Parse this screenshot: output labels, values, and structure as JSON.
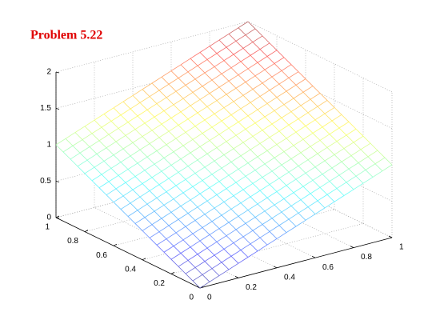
{
  "chart_data": {
    "type": "mesh3d",
    "title": "Problem 5.22",
    "x": [
      0,
      0.05,
      0.1,
      0.15,
      0.2,
      0.25,
      0.3,
      0.35,
      0.4,
      0.45,
      0.5,
      0.55,
      0.6,
      0.65,
      0.7,
      0.75,
      0.8,
      0.85,
      0.9,
      0.95,
      1
    ],
    "y": [
      0,
      0.05,
      0.1,
      0.15,
      0.2,
      0.25,
      0.3,
      0.35,
      0.4,
      0.45,
      0.5,
      0.55,
      0.6,
      0.65,
      0.7,
      0.75,
      0.8,
      0.85,
      0.9,
      0.95,
      1
    ],
    "z": [
      [
        0,
        0.05,
        0.1,
        0.15,
        0.2,
        0.25,
        0.3,
        0.35,
        0.4,
        0.45,
        0.5,
        0.55,
        0.6,
        0.65,
        0.7,
        0.75,
        0.8,
        0.85,
        0.9,
        0.95,
        1
      ],
      [
        0.05,
        0.1,
        0.15,
        0.2,
        0.25,
        0.3,
        0.35,
        0.4,
        0.45,
        0.5,
        0.55,
        0.6,
        0.65,
        0.7,
        0.75,
        0.8,
        0.85,
        0.9,
        0.95,
        1,
        1.05
      ],
      [
        0.1,
        0.15,
        0.2,
        0.25,
        0.3,
        0.35,
        0.4,
        0.45,
        0.5,
        0.55,
        0.6,
        0.65,
        0.7,
        0.75,
        0.8,
        0.85,
        0.9,
        0.95,
        1,
        1.05,
        1.1
      ],
      [
        0.15,
        0.2,
        0.25,
        0.3,
        0.35,
        0.4,
        0.45,
        0.5,
        0.55,
        0.6,
        0.65,
        0.7,
        0.75,
        0.8,
        0.85,
        0.9,
        0.95,
        1,
        1.05,
        1.1,
        1.15
      ],
      [
        0.2,
        0.25,
        0.3,
        0.35,
        0.4,
        0.45,
        0.5,
        0.55,
        0.6,
        0.65,
        0.7,
        0.75,
        0.8,
        0.85,
        0.9,
        0.95,
        1,
        1.05,
        1.1,
        1.15,
        1.2
      ],
      [
        0.25,
        0.3,
        0.35,
        0.4,
        0.45,
        0.5,
        0.55,
        0.6,
        0.65,
        0.7,
        0.75,
        0.8,
        0.85,
        0.9,
        0.95,
        1,
        1.05,
        1.1,
        1.15,
        1.2,
        1.25
      ],
      [
        0.3,
        0.35,
        0.4,
        0.45,
        0.5,
        0.55,
        0.6,
        0.65,
        0.7,
        0.75,
        0.8,
        0.85,
        0.9,
        0.95,
        1,
        1.05,
        1.1,
        1.15,
        1.2,
        1.25,
        1.3
      ],
      [
        0.35,
        0.4,
        0.45,
        0.5,
        0.55,
        0.6,
        0.65,
        0.7,
        0.75,
        0.8,
        0.85,
        0.9,
        0.95,
        1,
        1.05,
        1.1,
        1.15,
        1.2,
        1.25,
        1.3,
        1.35
      ],
      [
        0.4,
        0.45,
        0.5,
        0.55,
        0.6,
        0.65,
        0.7,
        0.75,
        0.8,
        0.85,
        0.9,
        0.95,
        1,
        1.05,
        1.1,
        1.15,
        1.2,
        1.25,
        1.3,
        1.35,
        1.4
      ],
      [
        0.45,
        0.5,
        0.55,
        0.6,
        0.65,
        0.7,
        0.75,
        0.8,
        0.85,
        0.9,
        0.95,
        1,
        1.05,
        1.1,
        1.15,
        1.2,
        1.25,
        1.3,
        1.35,
        1.4,
        1.45
      ],
      [
        0.5,
        0.55,
        0.6,
        0.65,
        0.7,
        0.75,
        0.8,
        0.85,
        0.9,
        0.95,
        1,
        1.05,
        1.1,
        1.15,
        1.2,
        1.25,
        1.3,
        1.35,
        1.4,
        1.45,
        1.5
      ],
      [
        0.55,
        0.6,
        0.65,
        0.7,
        0.75,
        0.8,
        0.85,
        0.9,
        0.95,
        1,
        1.05,
        1.1,
        1.15,
        1.2,
        1.25,
        1.3,
        1.35,
        1.4,
        1.45,
        1.5,
        1.55
      ],
      [
        0.6,
        0.65,
        0.7,
        0.75,
        0.8,
        0.85,
        0.9,
        0.95,
        1,
        1.05,
        1.1,
        1.15,
        1.2,
        1.25,
        1.3,
        1.35,
        1.4,
        1.45,
        1.5,
        1.55,
        1.6
      ],
      [
        0.65,
        0.7,
        0.75,
        0.8,
        0.85,
        0.9,
        0.95,
        1,
        1.05,
        1.1,
        1.15,
        1.2,
        1.25,
        1.3,
        1.35,
        1.4,
        1.45,
        1.5,
        1.55,
        1.6,
        1.65
      ],
      [
        0.7,
        0.75,
        0.8,
        0.85,
        0.9,
        0.95,
        1,
        1.05,
        1.1,
        1.15,
        1.2,
        1.25,
        1.3,
        1.35,
        1.4,
        1.45,
        1.5,
        1.55,
        1.6,
        1.65,
        1.7
      ],
      [
        0.75,
        0.8,
        0.85,
        0.9,
        0.95,
        1,
        1.05,
        1.1,
        1.15,
        1.2,
        1.25,
        1.3,
        1.35,
        1.4,
        1.45,
        1.5,
        1.55,
        1.6,
        1.65,
        1.7,
        1.75
      ],
      [
        0.8,
        0.85,
        0.9,
        0.95,
        1,
        1.05,
        1.1,
        1.15,
        1.2,
        1.25,
        1.3,
        1.35,
        1.4,
        1.45,
        1.5,
        1.55,
        1.6,
        1.65,
        1.7,
        1.75,
        1.8
      ],
      [
        0.85,
        0.9,
        0.95,
        1,
        1.05,
        1.1,
        1.15,
        1.2,
        1.25,
        1.3,
        1.35,
        1.4,
        1.45,
        1.5,
        1.55,
        1.6,
        1.65,
        1.7,
        1.75,
        1.8,
        1.85
      ],
      [
        0.9,
        0.95,
        1,
        1.05,
        1.1,
        1.15,
        1.2,
        1.25,
        1.3,
        1.35,
        1.4,
        1.45,
        1.5,
        1.55,
        1.6,
        1.65,
        1.7,
        1.75,
        1.8,
        1.85,
        1.9
      ],
      [
        0.95,
        1,
        1.05,
        1.1,
        1.15,
        1.2,
        1.25,
        1.3,
        1.35,
        1.4,
        1.45,
        1.5,
        1.55,
        1.6,
        1.65,
        1.7,
        1.75,
        1.8,
        1.85,
        1.9,
        1.95
      ],
      [
        1,
        1.05,
        1.1,
        1.15,
        1.2,
        1.25,
        1.3,
        1.35,
        1.4,
        1.45,
        1.5,
        1.55,
        1.6,
        1.65,
        1.7,
        1.75,
        1.8,
        1.85,
        1.9,
        1.95,
        2
      ]
    ],
    "colormap": "jet",
    "xlim": [
      0,
      1
    ],
    "ylim": [
      0,
      1
    ],
    "zlim": [
      0,
      2
    ],
    "xticks": [
      0,
      0.2,
      0.4,
      0.6,
      0.8,
      1
    ],
    "yticks": [
      0,
      0.2,
      0.4,
      0.6,
      0.8,
      1
    ],
    "zticks": [
      0,
      0.5,
      1,
      1.5,
      2
    ],
    "grid": true
  }
}
